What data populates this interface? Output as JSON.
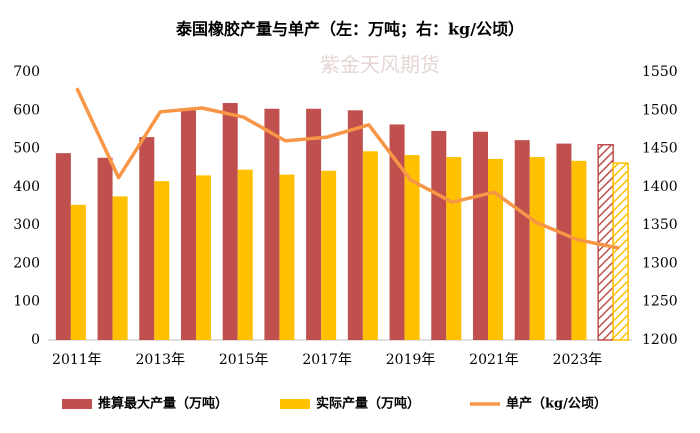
{
  "chart_data": {
    "type": "bar_line",
    "title": "泰国橡胶产量与单产（左：万吨；右：kg/公顷）",
    "watermark": "紫金天风期货",
    "categories": [
      "2011年",
      null,
      "2013年",
      null,
      "2015年",
      null,
      "2017年",
      null,
      "2019年",
      null,
      "2021年",
      null,
      "2023年",
      null
    ],
    "series": [
      {
        "name": "推算最大产量（万吨）",
        "color": "#c0504d",
        "type": "bar",
        "hatch_last": true,
        "values": [
          488,
          476,
          530,
          600,
          619,
          604,
          604,
          600,
          563,
          546,
          544,
          522,
          513,
          510
        ]
      },
      {
        "name": "实际产量（万吨）",
        "color": "#ffc000",
        "type": "bar",
        "hatch_last": true,
        "values": [
          353,
          375,
          415,
          430,
          445,
          432,
          442,
          493,
          483,
          478,
          473,
          478,
          468,
          462
        ]
      },
      {
        "name": "单产（kg/公顷）",
        "color": "#f79646",
        "type": "line",
        "axis": "y2",
        "values": [
          1529,
          1412,
          1498,
          1503,
          1491,
          1460,
          1465,
          1481,
          1409,
          1380,
          1393,
          1354,
          1331,
          1320
        ]
      }
    ],
    "ylim": [
      0,
      700
    ],
    "yticks": [
      0,
      100,
      200,
      300,
      400,
      500,
      600,
      700
    ],
    "y2lim": [
      1200,
      1550
    ],
    "y2ticks": [
      1200,
      1250,
      1300,
      1350,
      1400,
      1450,
      1500,
      1550
    ],
    "grid": false,
    "legend": "bottom"
  }
}
